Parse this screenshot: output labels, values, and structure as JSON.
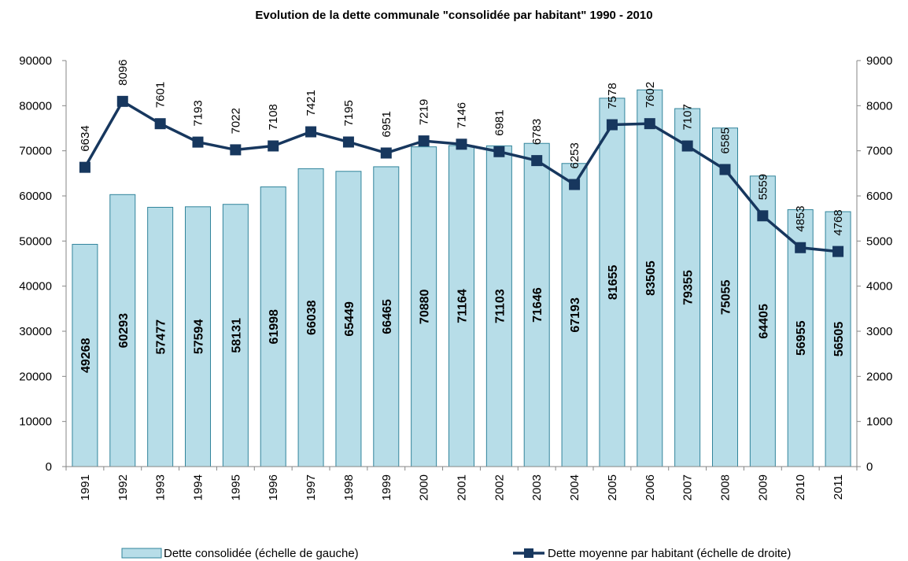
{
  "chart_data": {
    "type": "bar-line",
    "title": "Evolution de la dette communale \"consolidée par habitant\" 1990 - 2010",
    "categories": [
      "1991",
      "1992",
      "1993",
      "1994",
      "1995",
      "1996",
      "1997",
      "1998",
      "1999",
      "2000",
      "2001",
      "2002",
      "2003",
      "2004",
      "2005",
      "2006",
      "2007",
      "2008",
      "2009",
      "2010",
      "2011"
    ],
    "series": [
      {
        "name": "Dette consolidée (échelle de gauche)",
        "type": "bar",
        "color": "#b7dde8",
        "edge": "#31849b",
        "values": [
          49268,
          60293,
          57477,
          57594,
          58131,
          61998,
          66038,
          65449,
          66465,
          70880,
          71164,
          71103,
          71646,
          67193,
          81655,
          83505,
          79355,
          75055,
          64405,
          56955,
          56505
        ]
      },
      {
        "name": "Dette moyenne par habitant (échelle de droite)",
        "type": "line",
        "axis": "y2",
        "color": "#17375e",
        "values": [
          6634,
          8096,
          7601,
          7193,
          7022,
          7108,
          7421,
          7195,
          6951,
          7219,
          7146,
          6981,
          6783,
          6253,
          7578,
          7602,
          7107,
          6585,
          5559,
          4853,
          4768
        ]
      }
    ],
    "ylim": [
      0,
      90000
    ],
    "yticks": [
      0,
      10000,
      20000,
      30000,
      40000,
      50000,
      60000,
      70000,
      80000,
      90000
    ],
    "y2lim": [
      0,
      9000
    ],
    "y2ticks": [
      0,
      1000,
      2000,
      3000,
      4000,
      5000,
      6000,
      7000,
      8000,
      9000
    ],
    "grid": false,
    "legend": "bottom"
  }
}
